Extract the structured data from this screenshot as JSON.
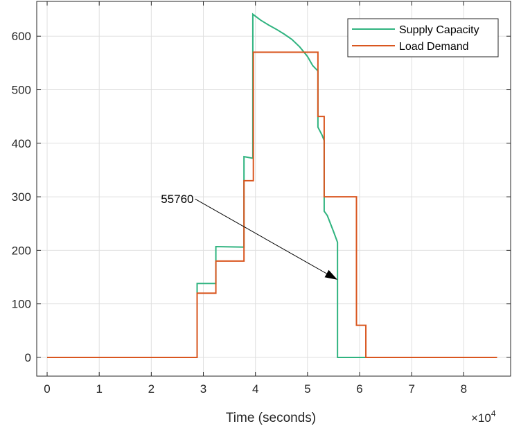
{
  "chart_data": {
    "type": "line",
    "title": "",
    "xlabel": "Time (seconds)",
    "ylabel": "",
    "x_exponent_base": "×10",
    "x_exponent_power": "4",
    "x_scale": 10000,
    "xlim": [
      -2000,
      89000
    ],
    "ylim": [
      -35,
      665
    ],
    "xticks": [
      0,
      10000,
      20000,
      30000,
      40000,
      50000,
      60000,
      70000,
      80000
    ],
    "xtick_labels": [
      "0",
      "1",
      "2",
      "3",
      "4",
      "5",
      "6",
      "7",
      "8"
    ],
    "yticks": [
      0,
      100,
      200,
      300,
      400,
      500,
      600
    ],
    "ytick_labels": [
      "0",
      "100",
      "200",
      "300",
      "400",
      "500",
      "600"
    ],
    "grid": true,
    "legend_position": "top-right",
    "series": [
      {
        "name": "Supply Capacity",
        "color": "#2fb37f",
        "points": [
          [
            0,
            0
          ],
          [
            28800,
            0
          ],
          [
            28800,
            138
          ],
          [
            32400,
            138
          ],
          [
            32400,
            207
          ],
          [
            37800,
            206
          ],
          [
            37800,
            375
          ],
          [
            39500,
            372
          ],
          [
            39500,
            641
          ],
          [
            41000,
            630
          ],
          [
            42500,
            621
          ],
          [
            44000,
            613
          ],
          [
            45500,
            604
          ],
          [
            47000,
            594
          ],
          [
            48500,
            580
          ],
          [
            50000,
            562
          ],
          [
            51000,
            545
          ],
          [
            52000,
            535
          ],
          [
            52000,
            430
          ],
          [
            52800,
            415
          ],
          [
            53200,
            405
          ],
          [
            53200,
            273
          ],
          [
            53800,
            265
          ],
          [
            54400,
            250
          ],
          [
            55000,
            235
          ],
          [
            55760,
            215
          ],
          [
            55760,
            0
          ],
          [
            61200,
            0
          ],
          [
            86400,
            0
          ]
        ]
      },
      {
        "name": "Load Demand",
        "color": "#d9561f",
        "points": [
          [
            0,
            0
          ],
          [
            28800,
            0
          ],
          [
            28800,
            120
          ],
          [
            32400,
            120
          ],
          [
            32400,
            180
          ],
          [
            37800,
            180
          ],
          [
            37800,
            330
          ],
          [
            39600,
            330
          ],
          [
            39600,
            570
          ],
          [
            52000,
            570
          ],
          [
            52000,
            450
          ],
          [
            53200,
            450
          ],
          [
            53200,
            300
          ],
          [
            59400,
            300
          ],
          [
            59400,
            60
          ],
          [
            61200,
            60
          ],
          [
            61200,
            0
          ],
          [
            86400,
            0
          ]
        ]
      }
    ],
    "annotation": {
      "text": "55760",
      "x_start": 28400,
      "y_start": 296,
      "x_end": 55760,
      "y_end": 145
    }
  }
}
